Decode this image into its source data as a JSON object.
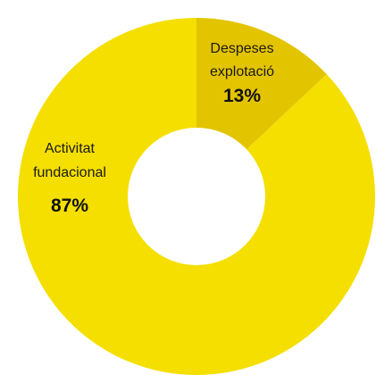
{
  "chart_data": {
    "type": "pie",
    "donut": true,
    "legend": "none",
    "slices": [
      {
        "id": "despeses",
        "label_lines": [
          "Despeses",
          "explotació"
        ],
        "value": 13,
        "value_label": "13%",
        "color": "#e3c400"
      },
      {
        "id": "activitat",
        "label_lines": [
          "Activitat",
          "fundacional"
        ],
        "value": 87,
        "value_label": "87%",
        "color": "#f4df00"
      }
    ]
  }
}
